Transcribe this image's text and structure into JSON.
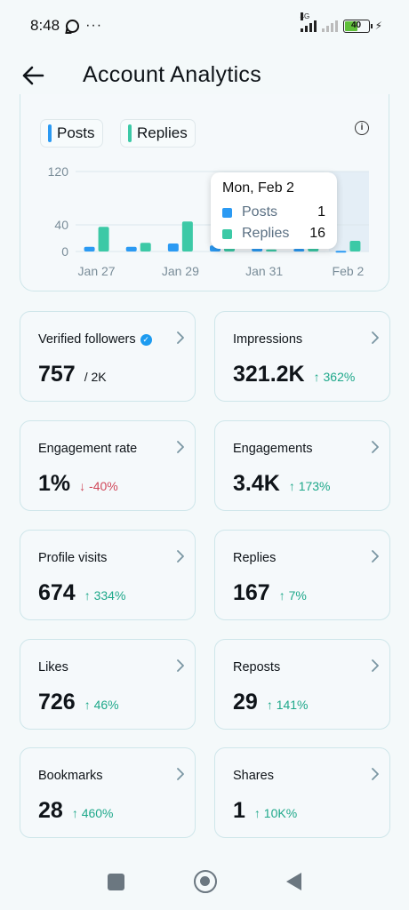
{
  "status_bar": {
    "time": "8:48",
    "more": "···",
    "network": "4G",
    "battery": "40"
  },
  "header": {
    "title": "Account Analytics"
  },
  "legend": {
    "posts": "Posts",
    "replies": "Replies",
    "posts_color": "#2b9af3",
    "replies_color": "#3cc9a6"
  },
  "tooltip": {
    "date": "Mon, Feb 2",
    "posts_label": "Posts",
    "posts_value": "1",
    "replies_label": "Replies",
    "replies_value": "16"
  },
  "chart_data": {
    "type": "bar",
    "y_ticks": [
      "120",
      "40",
      "0"
    ],
    "x_tick_labels": [
      "Jan 27",
      "Jan 29",
      "Jan 31",
      "Feb 2"
    ],
    "categories": [
      "Jan 27",
      "Jan 28",
      "Jan 29",
      "Jan 30",
      "Jan 31",
      "Feb 1",
      "Feb 2"
    ],
    "ylim": [
      0,
      120
    ],
    "highlighted_category": "Feb 2",
    "series": [
      {
        "name": "Posts",
        "color": "#2b9af3",
        "values": [
          7,
          7,
          12,
          9,
          5,
          4,
          1
        ]
      },
      {
        "name": "Replies",
        "color": "#3cc9a6",
        "values": [
          37,
          13,
          45,
          12,
          3,
          9,
          16
        ]
      }
    ]
  },
  "cards": [
    {
      "label": "Verified followers",
      "value": "757",
      "sub": "/ 2K",
      "change": "",
      "verified": true
    },
    {
      "label": "Impressions",
      "value": "321.2K",
      "sub": "",
      "change": "↑ 362%",
      "direction": "up"
    },
    {
      "label": "Engagement rate",
      "value": "1%",
      "sub": "",
      "change": "↓ -40%",
      "direction": "down"
    },
    {
      "label": "Engagements",
      "value": "3.4K",
      "sub": "",
      "change": "↑ 173%",
      "direction": "up"
    },
    {
      "label": "Profile visits",
      "value": "674",
      "sub": "",
      "change": "↑ 334%",
      "direction": "up"
    },
    {
      "label": "Replies",
      "value": "167",
      "sub": "",
      "change": "↑ 7%",
      "direction": "up"
    },
    {
      "label": "Likes",
      "value": "726",
      "sub": "",
      "change": "↑ 46%",
      "direction": "up"
    },
    {
      "label": "Reposts",
      "value": "29",
      "sub": "",
      "change": "↑ 141%",
      "direction": "up"
    },
    {
      "label": "Bookmarks",
      "value": "28",
      "sub": "",
      "change": "↑ 460%",
      "direction": "up"
    },
    {
      "label": "Shares",
      "value": "1",
      "sub": "",
      "change": "↑ 10K%",
      "direction": "up"
    }
  ]
}
